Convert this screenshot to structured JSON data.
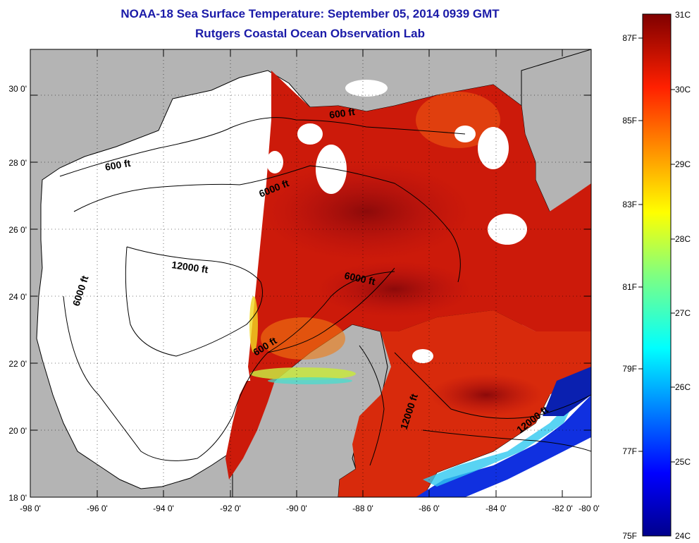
{
  "title": "NOAA-18 Sea Surface Temperature:  September 05, 2014 0939 GMT",
  "subtitle": "Rutgers Coastal Ocean Observation Lab",
  "map": {
    "lon_labels": [
      "-98 0'",
      "-96 0'",
      "-94 0'",
      "-92 0'",
      "-90 0'",
      "-88 0'",
      "-86 0'",
      "-84 0'",
      "-82 0'",
      "-80 0'"
    ],
    "lat_labels": [
      "18 0'",
      "20 0'",
      "22 0'",
      "24 0'",
      "26 0'",
      "28 0'",
      "30 0'"
    ],
    "contour_labels": [
      {
        "text": "600 ft"
      },
      {
        "text": "6000 ft"
      },
      {
        "text": "12000 ft"
      },
      {
        "text": "6000 ft"
      },
      {
        "text": "600 ft"
      },
      {
        "text": "600 ft"
      },
      {
        "text": "6000 ft"
      },
      {
        "text": "12000 ft"
      },
      {
        "text": "12000 ft"
      }
    ],
    "colors": {
      "land": "#b4b4b4",
      "water_no_data": "#ffffff",
      "sst_warm": "#c8140a",
      "sst_hot": "#8c0a0a"
    }
  },
  "colorbar": {
    "celsius_labels": [
      "31C",
      "30C",
      "29C",
      "28C",
      "27C",
      "26C",
      "25C",
      "24C"
    ],
    "fahrenheit_labels": [
      "87F",
      "85F",
      "83F",
      "81F",
      "79F",
      "77F",
      "75F"
    ]
  }
}
